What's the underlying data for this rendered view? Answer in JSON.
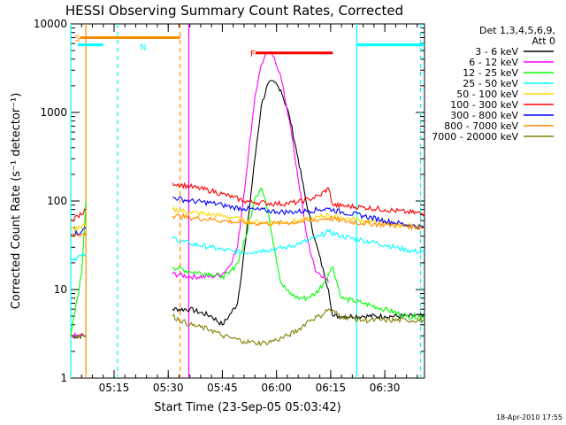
{
  "chart_data": {
    "type": "line",
    "title": "HESSI Observing Summary Count Rates, Corrected",
    "xlabel": "Start Time (23-Sep-05 05:03:42)",
    "ylabel": "Corrected Count Rate (s⁻¹ detector⁻¹)",
    "yscale": "log",
    "ylim": [
      1,
      10000
    ],
    "xlim_minutes": [
      5.05,
      6.6833
    ],
    "x_ticks": [
      {
        "value": 5.25,
        "label": "05:15"
      },
      {
        "value": 5.5,
        "label": "05:30"
      },
      {
        "value": 5.75,
        "label": "05:45"
      },
      {
        "value": 6.0,
        "label": "06:00"
      },
      {
        "value": 6.25,
        "label": "06:15"
      },
      {
        "value": 6.5,
        "label": "06:30"
      }
    ],
    "y_ticks": [
      {
        "value": 1,
        "label": "1"
      },
      {
        "value": 10,
        "label": "10"
      },
      {
        "value": 100,
        "label": "100"
      },
      {
        "value": 1000,
        "label": "1000"
      },
      {
        "value": 10000,
        "label": "10000"
      }
    ],
    "legend": {
      "header": [
        "Det 1,3,4,5,6,9,",
        "Att 0"
      ],
      "placement": "right"
    },
    "series": [
      {
        "name": "3 - 6 keV",
        "color": "#000000",
        "x": [
          5.05,
          5.12,
          5.13,
          5.5,
          5.52,
          5.6,
          5.7,
          5.75,
          5.78,
          5.82,
          5.86,
          5.9,
          5.93,
          5.96,
          5.99,
          6.02,
          6.06,
          6.1,
          6.14,
          6.18,
          6.22,
          6.24,
          6.26,
          6.3,
          6.4,
          6.5,
          6.6,
          6.6833
        ],
        "y": [
          3,
          3,
          null,
          null,
          6,
          6,
          5,
          4,
          5,
          7,
          40,
          300,
          1200,
          2100,
          2200,
          1800,
          900,
          300,
          90,
          35,
          15,
          10,
          5,
          5,
          5,
          5,
          5,
          5
        ]
      },
      {
        "name": "6 - 12 keV",
        "color": "#ff00ff",
        "x": [
          5.05,
          5.12,
          5.13,
          5.5,
          5.52,
          5.6,
          5.7,
          5.75,
          5.78,
          5.82,
          5.86,
          5.9,
          5.93,
          5.96,
          5.99,
          6.02,
          6.06,
          6.1,
          6.14,
          6.18,
          6.22,
          6.24
        ],
        "y": [
          3,
          3,
          null,
          null,
          15,
          14,
          14,
          15,
          18,
          30,
          200,
          1500,
          3500,
          4800,
          4200,
          2500,
          800,
          180,
          40,
          16,
          14,
          12
        ]
      },
      {
        "name": "12 - 25 keV",
        "color": "#00ff00",
        "x": [
          5.05,
          5.1,
          5.12,
          5.13,
          5.5,
          5.52,
          5.6,
          5.7,
          5.75,
          5.78,
          5.82,
          5.86,
          5.9,
          5.93,
          5.96,
          5.99,
          6.02,
          6.06,
          6.1,
          6.14,
          6.18,
          6.22,
          6.24,
          6.26,
          6.3,
          6.4,
          6.5,
          6.6,
          6.6833
        ],
        "y": [
          3,
          15,
          100,
          null,
          null,
          18,
          16,
          15,
          14,
          15,
          20,
          40,
          110,
          140,
          80,
          30,
          12,
          9,
          8,
          8,
          9,
          12,
          15,
          18,
          8,
          7,
          6,
          5,
          5
        ]
      },
      {
        "name": "25 - 50 keV",
        "color": "#00ffff",
        "x": [
          5.05,
          5.1,
          5.12,
          5.13,
          5.5,
          5.52,
          5.6,
          5.7,
          5.75,
          5.8,
          5.85,
          5.9,
          5.95,
          6.0,
          6.05,
          6.1,
          6.15,
          6.2,
          6.24,
          6.3,
          6.4,
          6.5,
          6.6,
          6.6833
        ],
        "y": [
          22,
          24,
          25,
          null,
          null,
          38,
          33,
          30,
          28,
          27,
          26,
          27,
          28,
          29,
          30,
          33,
          36,
          40,
          45,
          40,
          36,
          32,
          28,
          26
        ]
      },
      {
        "name": "50 - 100 keV",
        "color": "#ffd700",
        "x": [
          5.05,
          5.1,
          5.12,
          5.13,
          5.5,
          5.52,
          5.6,
          5.7,
          5.75,
          5.8,
          5.85,
          5.9,
          5.95,
          6.0,
          6.05,
          6.1,
          6.15,
          6.2,
          6.24,
          6.3,
          6.4,
          6.5,
          6.6,
          6.6833
        ],
        "y": [
          48,
          50,
          55,
          null,
          null,
          80,
          75,
          70,
          68,
          65,
          60,
          58,
          57,
          57,
          58,
          60,
          62,
          66,
          70,
          65,
          60,
          56,
          52,
          50
        ]
      },
      {
        "name": "100 - 300 keV",
        "color": "#ff0000",
        "x": [
          5.05,
          5.1,
          5.12,
          5.13,
          5.5,
          5.52,
          5.6,
          5.7,
          5.75,
          5.8,
          5.85,
          5.9,
          5.95,
          6.0,
          6.05,
          6.1,
          6.15,
          6.2,
          6.24,
          6.26,
          6.3,
          6.4,
          6.5,
          6.6,
          6.6833
        ],
        "y": [
          62,
          70,
          80,
          null,
          null,
          160,
          145,
          130,
          120,
          110,
          100,
          97,
          95,
          93,
          94,
          97,
          105,
          115,
          140,
          90,
          88,
          85,
          80,
          75,
          72
        ]
      },
      {
        "name": "300 - 800 keV",
        "color": "#0000ff",
        "x": [
          5.05,
          5.1,
          5.12,
          5.13,
          5.5,
          5.52,
          5.6,
          5.7,
          5.75,
          5.8,
          5.85,
          5.9,
          5.95,
          6.0,
          6.05,
          6.1,
          6.15,
          6.2,
          6.24,
          6.3,
          6.4,
          6.5,
          6.6,
          6.6833
        ],
        "y": [
          42,
          45,
          50,
          null,
          null,
          110,
          100,
          95,
          90,
          85,
          82,
          80,
          78,
          76,
          75,
          76,
          78,
          80,
          82,
          75,
          68,
          60,
          54,
          50
        ]
      },
      {
        "name": "800 - 7000 keV",
        "color": "#ff8c00",
        "x": [
          5.05,
          5.1,
          5.12,
          5.13,
          5.5,
          5.52,
          5.6,
          5.7,
          5.75,
          5.8,
          5.85,
          5.9,
          5.95,
          6.0,
          6.05,
          6.1,
          6.15,
          6.2,
          6.24,
          6.3,
          6.4,
          6.5,
          6.6,
          6.6833
        ],
        "y": [
          40,
          42,
          45,
          null,
          null,
          68,
          65,
          62,
          60,
          58,
          57,
          56,
          56,
          56,
          57,
          58,
          60,
          62,
          64,
          60,
          56,
          54,
          52,
          50
        ]
      },
      {
        "name": "7000 - 20000 keV",
        "color": "#808000",
        "x": [
          5.05,
          5.1,
          5.12,
          5.13,
          5.5,
          5.52,
          5.6,
          5.7,
          5.75,
          5.8,
          5.85,
          5.9,
          5.95,
          6.0,
          6.05,
          6.1,
          6.15,
          6.2,
          6.24,
          6.3,
          6.4,
          6.5,
          6.6,
          6.6833
        ],
        "y": [
          3,
          3,
          3,
          null,
          null,
          5,
          4,
          3.5,
          3,
          2.8,
          2.6,
          2.5,
          2.5,
          2.7,
          3,
          3.5,
          4.5,
          5,
          6,
          5,
          4.5,
          4.5,
          4.5,
          4.5
        ]
      }
    ],
    "annotations": [
      {
        "label": "S",
        "color": "#ff8c00",
        "x_start": 5.06,
        "x_end": 5.555,
        "y": 7000
      },
      {
        "label": "N",
        "color": "#00ffff",
        "x_start": 5.05,
        "x_end": 5.2,
        "y": 5800
      },
      {
        "label": "F",
        "color": "#ff0000",
        "x_start": 5.87,
        "x_end": 6.26,
        "y": 4700
      },
      {
        "label": "",
        "color": "#00ffff",
        "x_start": 6.37,
        "x_end": 6.6833,
        "y": 5800
      }
    ],
    "vertical_markers": [
      {
        "x": 5.05,
        "color": "#00ffff",
        "style": "solid"
      },
      {
        "x": 5.12,
        "color": "#ff8c00",
        "style": "solid"
      },
      {
        "x": 5.265,
        "color": "#00ffff",
        "style": "dashed"
      },
      {
        "x": 5.555,
        "color": "#ff8c00",
        "style": "dashed"
      },
      {
        "x": 5.595,
        "color": "#ff00ff",
        "style": "solid"
      },
      {
        "x": 6.37,
        "color": "#00ffff",
        "style": "solid"
      },
      {
        "x": 6.665,
        "color": "#00ffff",
        "style": "dashed"
      }
    ]
  },
  "timestamp": "18-Apr-2010 17:55"
}
